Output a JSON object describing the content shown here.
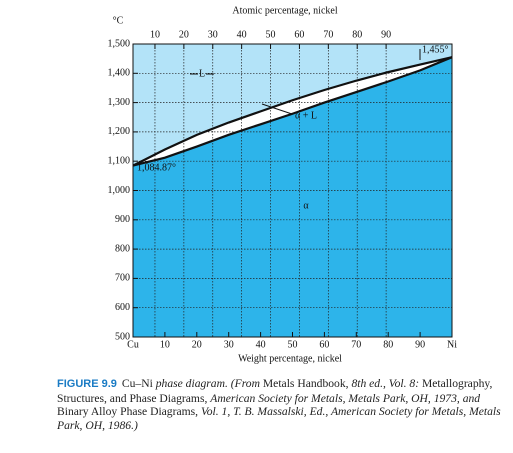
{
  "chart_data": {
    "type": "phase-diagram",
    "y_unit": "°C",
    "x2_label": "Atomic percentage, nickel",
    "xlabel": "Weight percentage, nickel",
    "xlim": [
      0,
      100
    ],
    "xticks": [
      {
        "value": 0,
        "label": "Cu"
      },
      10,
      20,
      30,
      40,
      50,
      60,
      70,
      80,
      90,
      {
        "value": 100,
        "label": "Ni"
      }
    ],
    "x2lim": [
      2.4,
      112.8
    ],
    "x2ticks": [
      10,
      20,
      30,
      40,
      50,
      60,
      70,
      80,
      90
    ],
    "ylim": [
      500,
      1500
    ],
    "yticks": [
      500,
      600,
      700,
      800,
      900,
      {
        "value": 1000,
        "label": "1,000"
      },
      {
        "value": 1100,
        "label": "1,100"
      },
      {
        "value": 1200,
        "label": "1,200"
      },
      {
        "value": 1300,
        "label": "1,300"
      },
      {
        "value": 1400,
        "label": "1,400"
      },
      {
        "value": 1500,
        "label": "1,500"
      }
    ],
    "grid": true,
    "x": [
      0,
      10,
      20,
      30,
      40,
      50,
      60,
      70,
      80,
      90,
      100
    ],
    "series": [
      {
        "color": "#111111",
        "values": [
          1085,
          1140,
          1190,
          1232,
          1270,
          1308,
          1343,
          1375,
          1404,
          1430,
          1455
        ]
      },
      {
        "color": "#111111",
        "values": [
          1085,
          1112,
          1150,
          1190,
          1226,
          1262,
          1300,
          1336,
          1372,
          1410,
          1455
        ]
      }
    ],
    "region_colors": {
      "liquid": "#b3e3f8",
      "two_phase": "#ffffff",
      "alpha": "#2db4ea"
    },
    "labels": {
      "liquid": "L",
      "two_phase": "α + L",
      "alpha": "α",
      "cu_melt": "1,084.87°",
      "ni_melt": "1,455°"
    },
    "caption_label": "FIGURE 9.9",
    "caption": [
      {
        "text": "Cu–Ni ",
        "italic": false
      },
      {
        "text": "phase diagram. (From ",
        "italic": true
      },
      {
        "text": "Metals Handbook, ",
        "italic": false
      },
      {
        "text": "8th ed., Vol. 8: ",
        "italic": true
      },
      {
        "text": "Metallography, Structures, and Phase Diagrams, ",
        "italic": false
      },
      {
        "text": "American Society for Metals, Metals Park, OH, 1973, and ",
        "italic": true
      },
      {
        "text": "Binary Alloy Phase Diagrams, ",
        "italic": false
      },
      {
        "text": "Vol. 1, T. B. Massalski, Ed., American Society for Metals, Metals Park, OH, 1986.)",
        "italic": true
      }
    ]
  }
}
